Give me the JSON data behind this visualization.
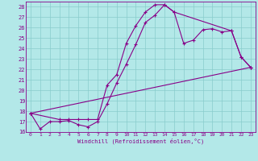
{
  "xlabel": "Windchill (Refroidissement éolien,°C)",
  "bg_color": "#b3e8e8",
  "line_color": "#880088",
  "grid_color": "#88cccc",
  "xlim": [
    -0.5,
    23.5
  ],
  "ylim": [
    16,
    28.5
  ],
  "xticks": [
    0,
    1,
    2,
    3,
    4,
    5,
    6,
    7,
    8,
    9,
    10,
    11,
    12,
    13,
    14,
    15,
    16,
    17,
    18,
    19,
    20,
    21,
    22,
    23
  ],
  "yticks": [
    16,
    17,
    18,
    19,
    20,
    21,
    22,
    23,
    24,
    25,
    26,
    27,
    28
  ],
  "line1_x": [
    0,
    1,
    2,
    3,
    4,
    5,
    6,
    7,
    8,
    9,
    10,
    11,
    12,
    13,
    14,
    15,
    16,
    17,
    18,
    19,
    20,
    21,
    22,
    23
  ],
  "line1_y": [
    17.8,
    16.3,
    17.0,
    17.0,
    17.1,
    16.7,
    16.5,
    17.0,
    18.7,
    20.7,
    22.5,
    24.4,
    26.5,
    27.2,
    28.2,
    27.5,
    24.5,
    24.8,
    25.8,
    25.9,
    25.6,
    25.7,
    23.2,
    22.2
  ],
  "line2_x": [
    0,
    3,
    4,
    5,
    6,
    7,
    8,
    9,
    10,
    11,
    12,
    13,
    14,
    15,
    21,
    22,
    23
  ],
  "line2_y": [
    17.8,
    17.2,
    17.2,
    17.2,
    17.2,
    17.2,
    20.5,
    21.5,
    24.5,
    26.2,
    27.5,
    28.2,
    28.2,
    27.5,
    25.7,
    23.2,
    22.2
  ],
  "line3_x": [
    0,
    23
  ],
  "line3_y": [
    17.8,
    22.2
  ]
}
